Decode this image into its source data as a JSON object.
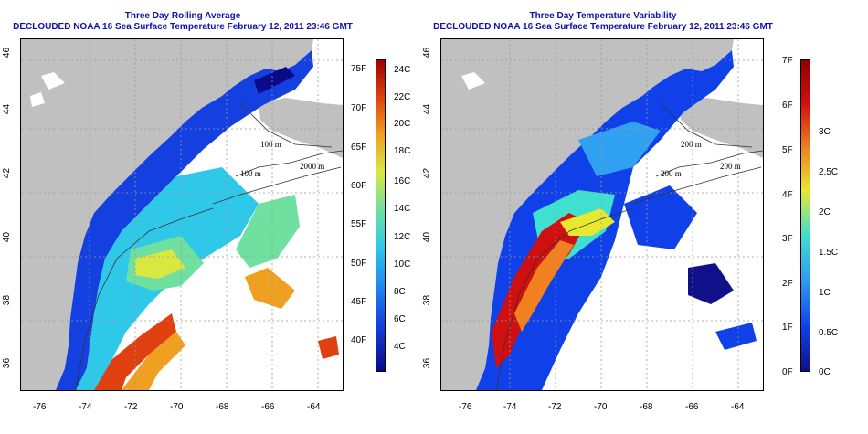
{
  "panels": [
    {
      "id": "left",
      "title_line1": "Three Day Rolling Average",
      "title_line2": "DECLOUDED NOAA 16 Sea Surface Temperature February 12, 2011 23:46 GMT",
      "colorbar": {
        "left_labels": [
          "75F",
          "70F",
          "65F",
          "60F",
          "55F",
          "50F",
          "45F",
          "40F"
        ],
        "right_labels": [
          "24C",
          "22C",
          "20C",
          "18C",
          "16C",
          "14C",
          "12C",
          "10C",
          "8C",
          "6C",
          "4C"
        ]
      }
    },
    {
      "id": "right",
      "title_line1": "Three Day Temperature Variability",
      "title_line2": "DECLOUDED NOAA 16 Sea Surface Temperature February 12, 2011 23:46 GMT",
      "colorbar": {
        "left_labels": [
          "7F",
          "6F",
          "5F",
          "4F",
          "3F",
          "2F",
          "1F",
          "0F"
        ],
        "right_labels": [
          "3C",
          "2.5C",
          "2C",
          "1.5C",
          "1C",
          "0.5C",
          "0C"
        ]
      }
    }
  ],
  "axes": {
    "x_ticks": [
      "-76",
      "-74",
      "-72",
      "-70",
      "-68",
      "-66",
      "-64"
    ],
    "y_ticks": [
      "46",
      "44",
      "42",
      "40",
      "38",
      "36"
    ]
  },
  "contour_labels": [
    "100 m",
    "2000 m",
    "100 m",
    "200 m",
    "200 m",
    "200 m"
  ],
  "colors": {
    "land": "#c0c0c0",
    "title": "#1010b0",
    "sst_scale": [
      "#0a0a8a",
      "#1540e0",
      "#1e8cf0",
      "#30c8e8",
      "#70e0a0",
      "#d8e840",
      "#f0a020",
      "#e04010",
      "#a00000"
    ],
    "var_scale": [
      "#10108a",
      "#1040e8",
      "#30a0f0",
      "#40e0d0",
      "#e8e830",
      "#f08020",
      "#d01010",
      "#900000"
    ]
  }
}
